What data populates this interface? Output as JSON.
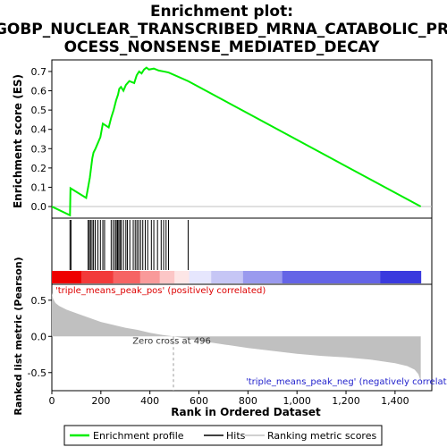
{
  "chart_data": {
    "type": "line",
    "title_lines": [
      "Enrichment plot:",
      "GOBP_NUCLEAR_TRANSCRIBED_MRNA_CATABOLIC_PR",
      "OCESS_NONSENSE_MEDIATED_DECAY"
    ],
    "xlabel": "Rank in Ordered Dataset",
    "xlim": [
      0,
      1550
    ],
    "xticks": [
      0,
      200,
      400,
      600,
      800,
      1000,
      1200,
      1400
    ],
    "xtick_labels": [
      "0",
      "200",
      "400",
      "600",
      "800",
      "1,000",
      "1,200",
      "1,400"
    ],
    "top_panel": {
      "ylabel": "Enrichment score (ES)",
      "ylim": [
        -0.06,
        0.76
      ],
      "yticks": [
        0.0,
        0.1,
        0.2,
        0.3,
        0.4,
        0.5,
        0.6,
        0.7
      ],
      "ytick_labels": [
        "0.0",
        "0.1",
        "0.2",
        "0.3",
        "0.4",
        "0.5",
        "0.6",
        "0.7"
      ],
      "series": [
        {
          "name": "Enrichment profile",
          "color": "#00ee00",
          "x": [
            0,
            74,
            76,
            140,
            148,
            155,
            160,
            165,
            170,
            178,
            188,
            198,
            208,
            232,
            242,
            252,
            262,
            270,
            275,
            282,
            292,
            302,
            316,
            336,
            346,
            356,
            366,
            376,
            386,
            396,
            416,
            436,
            456,
            476,
            556,
            1505
          ],
          "y": [
            0.0,
            -0.045,
            0.095,
            0.045,
            0.1,
            0.15,
            0.2,
            0.25,
            0.28,
            0.3,
            0.33,
            0.36,
            0.43,
            0.41,
            0.46,
            0.5,
            0.55,
            0.58,
            0.61,
            0.62,
            0.6,
            0.63,
            0.65,
            0.64,
            0.68,
            0.7,
            0.69,
            0.71,
            0.72,
            0.71,
            0.715,
            0.705,
            0.7,
            0.695,
            0.65,
            0.0
          ]
        }
      ]
    },
    "hits": {
      "name": "Hits",
      "color": "#000000",
      "positions": [
        74,
        78,
        148,
        153,
        158,
        164,
        170,
        177,
        188,
        198,
        208,
        215,
        242,
        250,
        258,
        263,
        268,
        273,
        278,
        283,
        292,
        302,
        308,
        318,
        332,
        340,
        347,
        354,
        362,
        371,
        381,
        391,
        406,
        416,
        431,
        446,
        456,
        466,
        476,
        556
      ]
    },
    "bottom_panel": {
      "ylabel": "Ranked list metric (Pearson)",
      "ylim": [
        -0.75,
        0.72
      ],
      "yticks": [
        0.5,
        0.0,
        -0.5
      ],
      "ytick_labels": [
        "0.5",
        "0.0",
        "-0.5"
      ],
      "series": [
        {
          "name": "Ranking metric scores",
          "color": "#c0c0c0",
          "x": [
            0,
            5,
            15,
            30,
            60,
            100,
            150,
            200,
            250,
            300,
            350,
            400,
            450,
            496,
            550,
            600,
            700,
            800,
            900,
            1000,
            1100,
            1200,
            1300,
            1400,
            1450,
            1480,
            1495,
            1505
          ],
          "y": [
            0.6,
            0.52,
            0.46,
            0.42,
            0.37,
            0.32,
            0.26,
            0.2,
            0.16,
            0.12,
            0.09,
            0.05,
            0.02,
            0.0,
            -0.03,
            -0.06,
            -0.11,
            -0.16,
            -0.2,
            -0.24,
            -0.27,
            -0.29,
            -0.32,
            -0.37,
            -0.41,
            -0.46,
            -0.52,
            -0.62
          ]
        }
      ],
      "zero_cross_label": "Zero cross at 496",
      "zero_cross_x": 496,
      "pos_label": "'triple_means_peak_pos' (positively correlated)",
      "neg_label": "'triple_means_peak_neg' (negatively correlated)"
    },
    "legend": {
      "placement": "bottom",
      "items": [
        {
          "label": "Enrichment profile",
          "color": "#00ee00"
        },
        {
          "label": "Hits",
          "color": "#000000"
        },
        {
          "label": "Ranking metric scores",
          "color": "#c0c0c0"
        }
      ]
    },
    "heat_bar": {
      "colors": [
        "#ee0000",
        "#f23a3a",
        "#f66464",
        "#f99a9a",
        "#fcc6c6",
        "#fde6e6",
        "#e6e6fd",
        "#c6c6f5",
        "#9a9aee",
        "#6464e6",
        "#3a3ade",
        "#1010d8"
      ],
      "breaks": [
        0,
        120,
        250,
        360,
        440,
        500,
        560,
        650,
        780,
        940,
        1340,
        1505
      ]
    }
  }
}
